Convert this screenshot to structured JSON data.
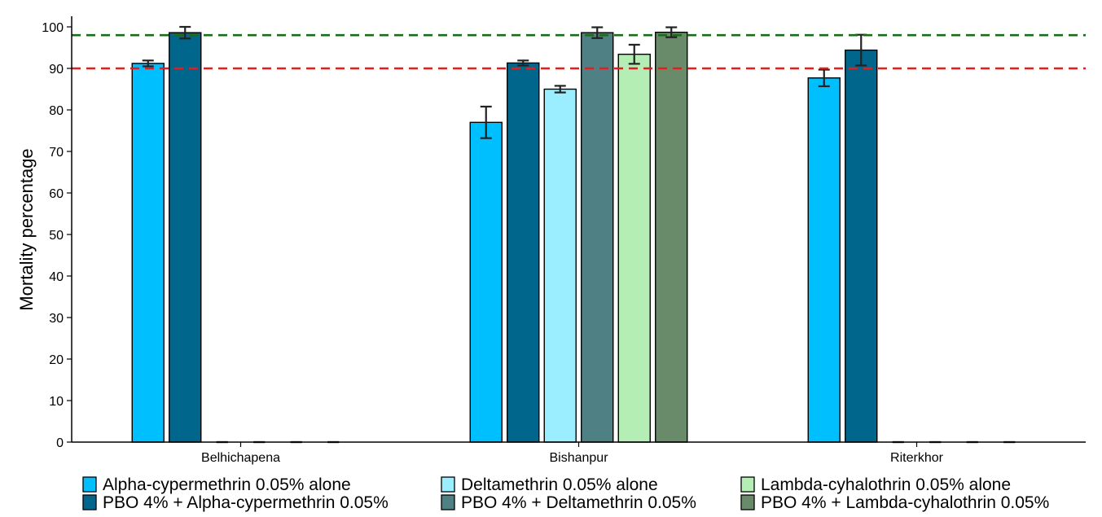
{
  "chart_data": {
    "type": "bar",
    "ylabel": "Mortality percentage",
    "xlabel": "",
    "ylim": [
      0,
      100
    ],
    "yticks": [
      0,
      10,
      20,
      30,
      40,
      50,
      60,
      70,
      80,
      90,
      100
    ],
    "grid": false,
    "legend_position": "bottom",
    "categories": [
      "Belhichapena",
      "Bishanpur",
      "Riterkhor"
    ],
    "series": [
      {
        "name": "Alpha-cypermethrin 0.05% alone",
        "color": "#00BFFF",
        "values": [
          91.2,
          77.0,
          87.7
        ],
        "errors": [
          0.7,
          3.8,
          2.0
        ]
      },
      {
        "name": "PBO 4% + Alpha-cypermethrin 0.05%",
        "color": "#00668C",
        "values": [
          98.6,
          91.3,
          94.4
        ],
        "errors": [
          1.4,
          0.6,
          3.7
        ]
      },
      {
        "name": "Deltamethrin 0.05% alone",
        "color": "#9AEEFF",
        "values": [
          0,
          85.0,
          0
        ],
        "errors": [
          0,
          0.8,
          0
        ]
      },
      {
        "name": "PBO 4% + Deltamethrin 0.05%",
        "color": "#4F8084",
        "values": [
          0,
          98.6,
          0
        ],
        "errors": [
          0,
          1.3,
          0
        ]
      },
      {
        "name": "Lambda-cyhalothrin 0.05% alone",
        "color": "#B4EEB4",
        "values": [
          0,
          93.4,
          0
        ],
        "errors": [
          0,
          2.3,
          0
        ]
      },
      {
        "name": "PBO 4% + Lambda-cyhalothrin 0.05%",
        "color": "#698B69",
        "values": [
          0,
          98.7,
          0
        ],
        "errors": [
          0,
          1.2,
          0
        ]
      }
    ],
    "reference_lines": [
      {
        "value": 98,
        "color": "#1A6B1A",
        "style": "dashed"
      },
      {
        "value": 90,
        "color": "#E02020",
        "style": "dashed"
      }
    ]
  }
}
